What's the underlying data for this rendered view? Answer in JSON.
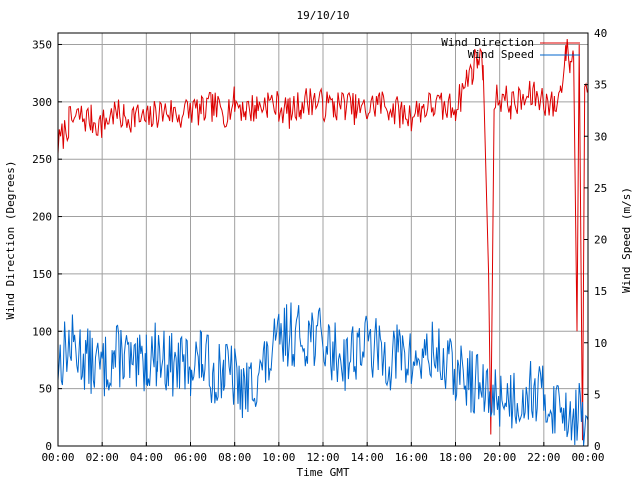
{
  "chart_data": {
    "type": "line",
    "title": "19/10/10",
    "xlabel": "Time GMT",
    "ylabel_left": "Wind Direction (Degrees)",
    "ylabel_right": "Wind Speed (m/s)",
    "x_ticks": [
      "00:00",
      "02:00",
      "04:00",
      "06:00",
      "08:00",
      "10:00",
      "12:00",
      "14:00",
      "16:00",
      "18:00",
      "20:00",
      "22:00",
      "00:00"
    ],
    "x_range_hours": [
      0,
      24
    ],
    "y_left_range": [
      0,
      360
    ],
    "y_left_ticks": [
      0,
      50,
      100,
      150,
      200,
      250,
      300,
      350
    ],
    "y_right_range": [
      0,
      40
    ],
    "y_right_ticks": [
      0,
      5,
      10,
      15,
      20,
      25,
      30,
      35,
      40
    ],
    "grid": true,
    "legend_position": "top-right",
    "series": [
      {
        "name": "Wind Direction",
        "axis": "left",
        "color": "#dd0000",
        "hours": [
          0,
          0.5,
          1,
          1.5,
          2,
          2.5,
          3,
          3.5,
          4,
          4.5,
          5,
          5.5,
          6,
          6.5,
          7,
          7.5,
          8,
          8.5,
          9,
          9.5,
          10,
          10.5,
          11,
          11.5,
          12,
          12.5,
          13,
          13.5,
          14,
          14.5,
          15,
          15.5,
          16,
          16.5,
          17,
          17.5,
          18,
          18.25,
          18.5,
          18.75,
          19,
          19.25,
          19.5,
          19.6,
          19.75,
          20,
          20.5,
          21,
          21.5,
          22,
          22.5,
          22.75,
          23,
          23.2,
          23.35,
          23.5,
          23.6,
          23.75,
          23.85,
          24
        ],
        "values": [
          262,
          282,
          287,
          284,
          280,
          290,
          286,
          288,
          283,
          290,
          292,
          288,
          294,
          291,
          296,
          290,
          300,
          293,
          295,
          300,
          296,
          290,
          298,
          302,
          297,
          296,
          298,
          293,
          292,
          300,
          295,
          290,
          288,
          295,
          297,
          294,
          296,
          305,
          320,
          328,
          340,
          332,
          150,
          10,
          300,
          305,
          298,
          300,
          306,
          302,
          295,
          310,
          345,
          335,
          340,
          100,
          350,
          5,
          320,
          310
        ]
      },
      {
        "name": "Wind Speed",
        "axis": "right",
        "color": "#0066cc",
        "hours": [
          0,
          0.5,
          1,
          1.5,
          2,
          2.5,
          3,
          3.5,
          4,
          4.5,
          5,
          5.5,
          6,
          6.5,
          7,
          7.5,
          8,
          8.5,
          9,
          9.5,
          10,
          10.5,
          11,
          11.5,
          12,
          12.5,
          13,
          13.5,
          14,
          14.5,
          15,
          15.5,
          16,
          16.5,
          17,
          17.5,
          18,
          18.5,
          19,
          19.5,
          20,
          20.5,
          21,
          21.5,
          22,
          22.5,
          23,
          23.5,
          24
        ],
        "values": [
          8,
          10,
          9,
          8,
          7.5,
          8.5,
          9,
          7,
          8.5,
          9,
          8,
          7.5,
          8,
          8.5,
          7,
          7.5,
          6.5,
          5,
          7,
          8,
          10,
          11,
          10.5,
          11,
          10,
          9,
          8.5,
          9.5,
          10,
          9,
          8.5,
          9,
          8,
          8.5,
          9,
          8,
          7,
          6.5,
          6,
          4.5,
          5,
          4.5,
          5,
          5.5,
          4.5,
          4,
          3.5,
          3,
          2.5
        ]
      }
    ]
  }
}
